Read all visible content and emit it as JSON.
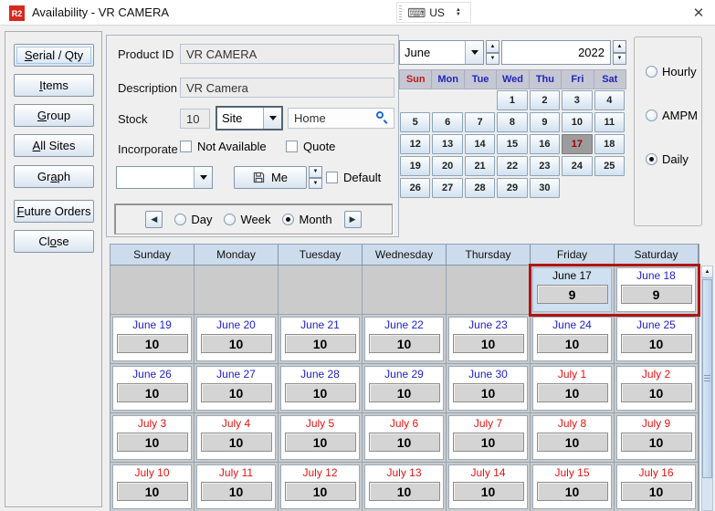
{
  "window": {
    "app_icon_text": "R2",
    "title": "Availability - VR CAMERA",
    "language": "US",
    "close_glyph": "✕"
  },
  "colors": {
    "app_icon_red": "#d8281e",
    "selection_border_red": "#b01414",
    "june_date_blue": "#2020cc",
    "july_date_red": "#e41414",
    "calendar_header_bg": "#ccdcec"
  },
  "sidebar": {
    "items": [
      {
        "label": "Serial / Qty",
        "ul": 0
      },
      {
        "label": "Items",
        "ul": 0
      },
      {
        "label": "Group",
        "ul": 0
      },
      {
        "label": "All Sites",
        "ul": 0
      },
      {
        "label": "Graph",
        "ul": 2
      },
      {
        "label": "Future Orders",
        "ul": 0
      },
      {
        "label": "Close",
        "ul": 2
      }
    ]
  },
  "form": {
    "product_id_label": "Product ID",
    "product_id_value": "VR CAMERA",
    "description_label": "Description",
    "description_value": "VR Camera",
    "stock_label": "Stock",
    "stock_value": "10",
    "site_selector_value": "Site",
    "site_value": "Home",
    "incorporate_label": "Incorporate",
    "not_available_label": "Not Available",
    "quote_label": "Quote",
    "preset_combo_value": "",
    "me_button_label": "Me",
    "default_label": "Default",
    "view_options": {
      "day": "Day",
      "week": "Week",
      "month": "Month"
    },
    "view_selected": "Month"
  },
  "mini_calendar": {
    "month": "June",
    "year": "2022",
    "day_headers": [
      "Sun",
      "Mon",
      "Tue",
      "Wed",
      "Thu",
      "Fri",
      "Sat"
    ],
    "weeks": [
      [
        "",
        "",
        "",
        "1",
        "2",
        "3",
        "4"
      ],
      [
        "5",
        "6",
        "7",
        "8",
        "9",
        "10",
        "11"
      ],
      [
        "12",
        "13",
        "14",
        "15",
        "16",
        "17",
        "18"
      ],
      [
        "19",
        "20",
        "21",
        "22",
        "23",
        "24",
        "25"
      ],
      [
        "26",
        "27",
        "28",
        "29",
        "30",
        "",
        ""
      ]
    ],
    "selected_day": "17"
  },
  "granularity": {
    "options": [
      "Hourly",
      "AMPM",
      "Daily"
    ],
    "selected": "Daily"
  },
  "calendar": {
    "day_headers": [
      "Sunday",
      "Monday",
      "Tuesday",
      "Wednesday",
      "Thursday",
      "Friday",
      "Saturday"
    ],
    "selected_days": [
      "June 17",
      "June 18"
    ],
    "weeks": [
      [
        {
          "empty": true
        },
        {
          "empty": true
        },
        {
          "empty": true
        },
        {
          "empty": true
        },
        {
          "empty": true
        },
        {
          "date": "June 17",
          "qty": "9",
          "color": "black",
          "today": true
        },
        {
          "date": "June 18",
          "qty": "9",
          "color": "blue"
        }
      ],
      [
        {
          "date": "June 19",
          "qty": "10",
          "color": "blue"
        },
        {
          "date": "June 20",
          "qty": "10",
          "color": "blue"
        },
        {
          "date": "June 21",
          "qty": "10",
          "color": "blue"
        },
        {
          "date": "June 22",
          "qty": "10",
          "color": "blue"
        },
        {
          "date": "June 23",
          "qty": "10",
          "color": "blue"
        },
        {
          "date": "June 24",
          "qty": "10",
          "color": "blue"
        },
        {
          "date": "June 25",
          "qty": "10",
          "color": "blue"
        }
      ],
      [
        {
          "date": "June 26",
          "qty": "10",
          "color": "blue"
        },
        {
          "date": "June 27",
          "qty": "10",
          "color": "blue"
        },
        {
          "date": "June 28",
          "qty": "10",
          "color": "blue"
        },
        {
          "date": "June 29",
          "qty": "10",
          "color": "blue"
        },
        {
          "date": "June 30",
          "qty": "10",
          "color": "blue"
        },
        {
          "date": "July 1",
          "qty": "10",
          "color": "red"
        },
        {
          "date": "July 2",
          "qty": "10",
          "color": "red"
        }
      ],
      [
        {
          "date": "July 3",
          "qty": "10",
          "color": "red"
        },
        {
          "date": "July 4",
          "qty": "10",
          "color": "red"
        },
        {
          "date": "July 5",
          "qty": "10",
          "color": "red"
        },
        {
          "date": "July 6",
          "qty": "10",
          "color": "red"
        },
        {
          "date": "July 7",
          "qty": "10",
          "color": "red"
        },
        {
          "date": "July 8",
          "qty": "10",
          "color": "red"
        },
        {
          "date": "July 9",
          "qty": "10",
          "color": "red"
        }
      ],
      [
        {
          "date": "July 10",
          "qty": "10",
          "color": "red"
        },
        {
          "date": "July 11",
          "qty": "10",
          "color": "red"
        },
        {
          "date": "July 12",
          "qty": "10",
          "color": "red"
        },
        {
          "date": "July 13",
          "qty": "10",
          "color": "red"
        },
        {
          "date": "July 14",
          "qty": "10",
          "color": "red"
        },
        {
          "date": "July 15",
          "qty": "10",
          "color": "red"
        },
        {
          "date": "July 16",
          "qty": "10",
          "color": "red"
        }
      ]
    ]
  }
}
